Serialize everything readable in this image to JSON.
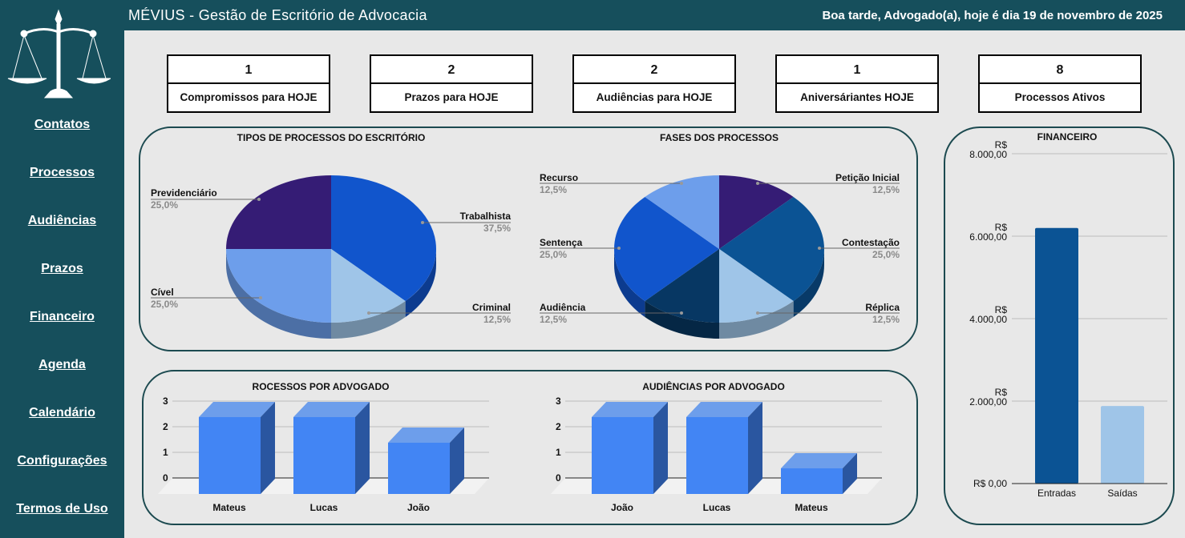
{
  "header": {
    "title": "MÉVIUS - Gestão de Escritório de Advocacia",
    "greeting": "Boa tarde, Advogado(a), hoje é dia 19 de novembro de 2025"
  },
  "sidebar": {
    "logo": "scales-of-justice-icon",
    "items": [
      {
        "label": "Contatos"
      },
      {
        "label": "Processos"
      },
      {
        "label": "Audiências"
      },
      {
        "label": "Prazos"
      },
      {
        "label": "Financeiro"
      },
      {
        "label": "Agenda"
      },
      {
        "label": "Calendário"
      },
      {
        "label": "Configurações"
      },
      {
        "label": "Termos de Uso"
      }
    ]
  },
  "kpis": [
    {
      "value": "1",
      "label": "Compromissos para HOJE"
    },
    {
      "value": "2",
      "label": "Prazos para HOJE"
    },
    {
      "value": "2",
      "label": "Audiências para HOJE"
    },
    {
      "value": "1",
      "label": "Aniversáriantes HOJE"
    },
    {
      "value": "8",
      "label": "Processos Ativos"
    }
  ],
  "colors": {
    "sidebar": "#164f5c",
    "panel_border": "#1c4a50",
    "bar_front": "#4285f4",
    "bar_top": "#6d9eeb",
    "bar_side": "#2a56a0"
  },
  "chart_data": [
    {
      "type": "pie",
      "title": "TIPOS DE PROCESSOS DO ESCRITÓRIO",
      "slices": [
        {
          "label": "Trabalhista",
          "value": 37.5,
          "pct": "37,5%",
          "color": "#1155cc"
        },
        {
          "label": "Criminal",
          "value": 12.5,
          "pct": "12,5%",
          "color": "#9fc5e8"
        },
        {
          "label": "Cível",
          "value": 25.0,
          "pct": "25,0%",
          "color": "#6d9eeb"
        },
        {
          "label": "Previdenciário",
          "value": 25.0,
          "pct": "25,0%",
          "color": "#351c75"
        }
      ]
    },
    {
      "type": "pie",
      "title": "FASES DOS PROCESSOS",
      "slices": [
        {
          "label": "Petição Inicial",
          "value": 12.5,
          "pct": "12,5%",
          "color": "#351c75"
        },
        {
          "label": "Contestação",
          "value": 25.0,
          "pct": "25,0%",
          "color": "#0b5394"
        },
        {
          "label": "Réplica",
          "value": 12.5,
          "pct": "12,5%",
          "color": "#9fc5e8"
        },
        {
          "label": "Audiência",
          "value": 12.5,
          "pct": "12,5%",
          "color": "#073763"
        },
        {
          "label": "Sentença",
          "value": 25.0,
          "pct": "25,0%",
          "color": "#1155cc"
        },
        {
          "label": "Recurso",
          "value": 12.5,
          "pct": "12,5%",
          "color": "#6d9eeb"
        }
      ]
    },
    {
      "type": "bar",
      "title": "ROCESSOS POR ADVOGADO",
      "categories": [
        "Mateus",
        "Lucas",
        "João"
      ],
      "values": [
        3,
        3,
        2
      ],
      "yticks": [
        "0",
        "1",
        "2",
        "3"
      ],
      "ylim": [
        0,
        3
      ]
    },
    {
      "type": "bar",
      "title": "AUDIÊNCIAS POR ADVOGADO",
      "categories": [
        "João",
        "Lucas",
        "Mateus"
      ],
      "values": [
        3,
        3,
        1
      ],
      "yticks": [
        "0",
        "1",
        "2",
        "3"
      ],
      "ylim": [
        0,
        3
      ]
    },
    {
      "type": "bar",
      "title": "FINANCEIRO",
      "categories": [
        "Entradas",
        "Saídas"
      ],
      "values": [
        6200,
        1880
      ],
      "colors": [
        "#0b5394",
        "#9fc5e8"
      ],
      "yticks": [
        [
          "R$ 0,00",
          ""
        ],
        [
          "R$",
          "2.000,00"
        ],
        [
          "R$",
          "4.000,00"
        ],
        [
          "R$",
          "6.000,00"
        ],
        [
          "R$",
          "8.000,00"
        ]
      ],
      "ylim": [
        0,
        8000
      ]
    }
  ]
}
